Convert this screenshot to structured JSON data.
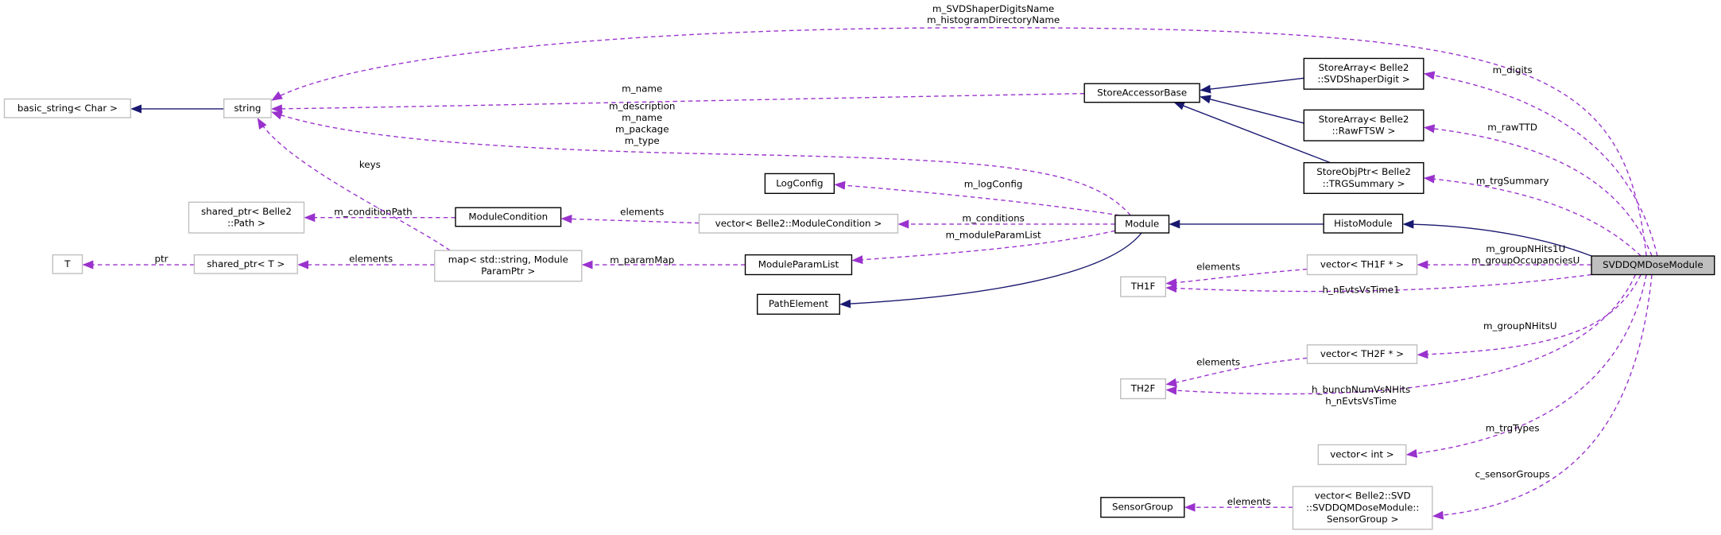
{
  "nodes": [
    {
      "label": [
        "SVDDQMDoseModule"
      ]
    },
    {
      "label": [
        "HistoModule"
      ]
    },
    {
      "label": [
        "Module"
      ]
    },
    {
      "label": [
        "StoreArray< Belle2",
        "::SVDShaperDigit >"
      ]
    },
    {
      "label": [
        "StoreArray< Belle2",
        "::RawFTSW >"
      ]
    },
    {
      "label": [
        "StoreObjPtr< Belle2",
        "::TRGSummary >"
      ]
    },
    {
      "label": [
        "StoreAccessorBase"
      ]
    },
    {
      "label": [
        "string"
      ]
    },
    {
      "label": [
        "basic_string< Char >"
      ]
    },
    {
      "label": [
        "LogConfig"
      ]
    },
    {
      "label": [
        "ModuleCondition"
      ]
    },
    {
      "label": [
        "vector< Belle2::ModuleCondition >"
      ]
    },
    {
      "label": [
        "shared_ptr< Belle2",
        "::Path >"
      ]
    },
    {
      "label": [
        "ModuleParamList"
      ]
    },
    {
      "label": [
        "map< std::string, Module",
        "ParamPtr >"
      ]
    },
    {
      "label": [
        "shared_ptr< T >"
      ]
    },
    {
      "label": [
        "T"
      ]
    },
    {
      "label": [
        "PathElement"
      ]
    },
    {
      "label": [
        "vector< TH1F * >"
      ]
    },
    {
      "label": [
        "TH1F"
      ]
    },
    {
      "label": [
        "vector< TH2F * >"
      ]
    },
    {
      "label": [
        "TH2F"
      ]
    },
    {
      "label": [
        "vector< int >"
      ]
    },
    {
      "label": [
        "SensorGroup"
      ]
    },
    {
      "label": [
        "vector< Belle2::SVD",
        "::SVDDQMDoseModule::",
        "SensorGroup >"
      ]
    }
  ],
  "edges": [
    {
      "label": [
        "m_SVDShaperDigitsName",
        "m_histogramDirectoryName"
      ]
    },
    {
      "label": [
        "m_digits"
      ]
    },
    {
      "label": [
        "m_rawTTD"
      ]
    },
    {
      "label": [
        "m_trgSummary"
      ]
    },
    {
      "label": [
        "m_groupNHits1U",
        "m_groupOccupanciesU"
      ]
    },
    {
      "label": [
        "h_nEvtsVsTime1"
      ]
    },
    {
      "label": [
        "m_groupNHitsU"
      ]
    },
    {
      "label": [
        "h_bunchNumVsNHits",
        "h_nEvtsVsTime"
      ]
    },
    {
      "label": [
        "m_trgTypes"
      ]
    },
    {
      "label": [
        "c_sensorGroups"
      ]
    },
    {
      "label": [
        "elements"
      ]
    },
    {
      "label": [
        "elements"
      ]
    },
    {
      "label": [
        "elements"
      ]
    },
    {
      "label": [
        "m_name"
      ]
    },
    {
      "label": [
        "m_description",
        "m_name",
        "m_package",
        "m_type"
      ]
    },
    {
      "label": [
        "m_logConfig"
      ]
    },
    {
      "label": [
        "m_conditions"
      ]
    },
    {
      "label": [
        "m_moduleParamList"
      ]
    },
    {
      "label": [
        "elements"
      ]
    },
    {
      "label": [
        "m_conditionPath"
      ]
    },
    {
      "label": [
        "m_paramMap"
      ]
    },
    {
      "label": [
        "keys"
      ]
    },
    {
      "label": [
        "elements"
      ]
    },
    {
      "label": [
        "ptr"
      ]
    }
  ]
}
